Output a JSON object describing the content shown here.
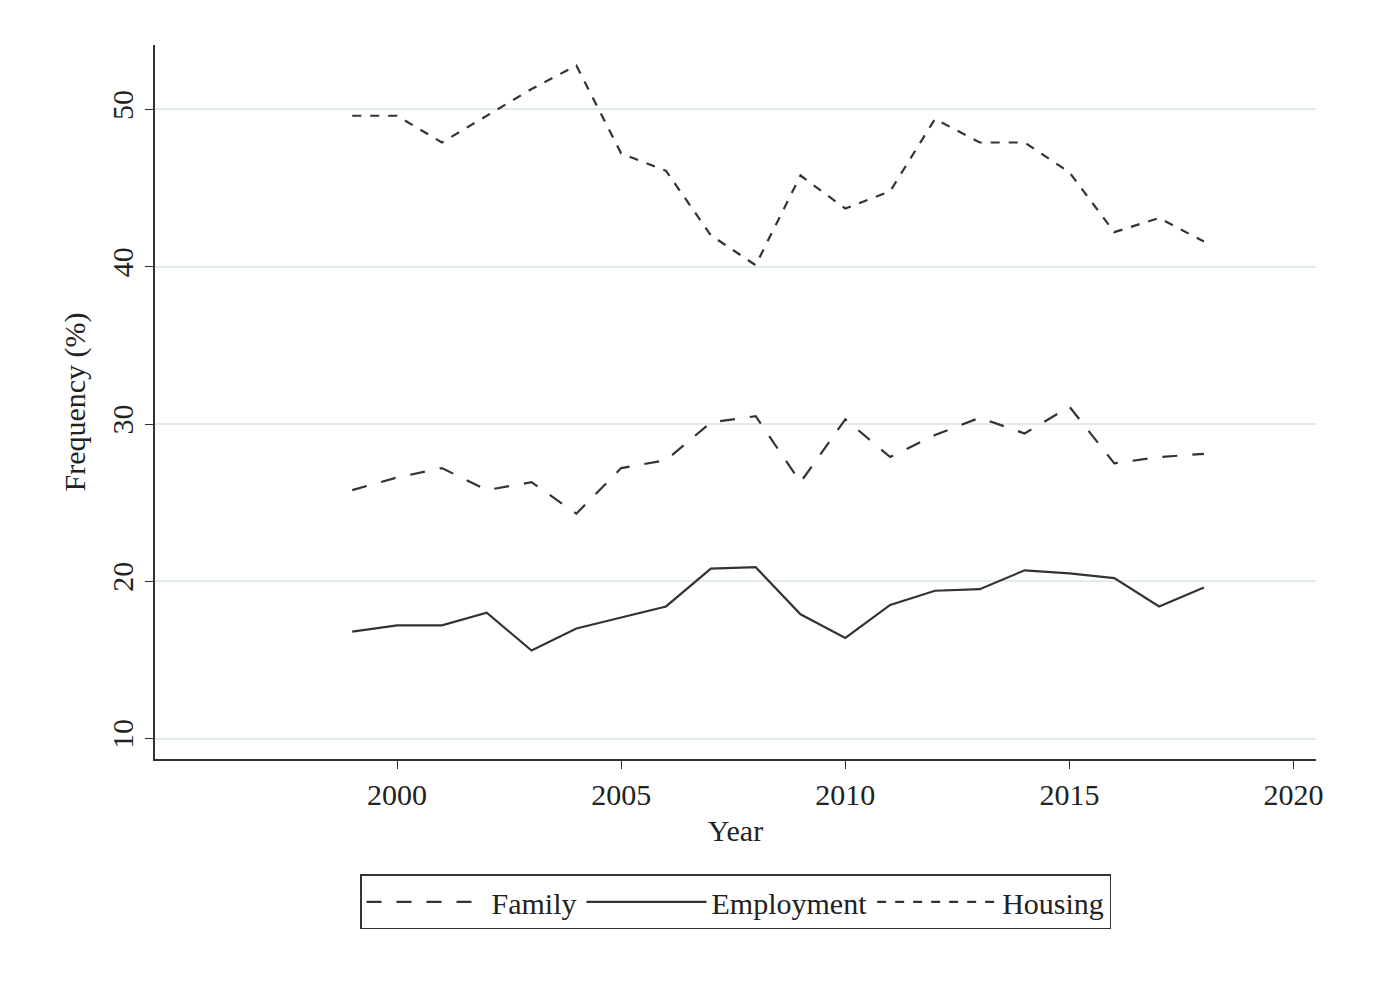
{
  "chart_data": {
    "type": "line",
    "x_label": "Year",
    "y_label": "Frequency (%)",
    "x": [
      1999,
      2000,
      2001,
      2002,
      2003,
      2004,
      2005,
      2006,
      2007,
      2008,
      2009,
      2010,
      2011,
      2012,
      2013,
      2014,
      2015,
      2016,
      2017,
      2018
    ],
    "series": [
      {
        "name": "Family",
        "color": "#333333",
        "line_style": "longdash",
        "values": [
          25.8,
          26.6,
          27.2,
          25.8,
          26.3,
          24.3,
          27.2,
          27.7,
          30.1,
          30.5,
          26.3,
          30.3,
          27.9,
          29.3,
          30.4,
          29.4,
          31.1,
          27.5,
          27.9,
          28.1
        ]
      },
      {
        "name": "Employment",
        "color": "#333333",
        "line_style": "solid",
        "values": [
          16.8,
          17.2,
          17.2,
          18.0,
          15.6,
          17.0,
          17.7,
          18.4,
          20.8,
          20.9,
          17.9,
          16.4,
          18.5,
          19.4,
          19.5,
          20.7,
          20.5,
          20.2,
          18.4,
          19.6
        ]
      },
      {
        "name": "Housing",
        "color": "#333333",
        "line_style": "dash",
        "values": [
          49.6,
          49.6,
          47.9,
          49.6,
          51.3,
          52.8,
          47.2,
          46.1,
          42.0,
          40.1,
          45.8,
          43.7,
          44.8,
          49.4,
          47.9,
          47.9,
          46.0,
          42.2,
          43.1,
          41.6
        ]
      }
    ],
    "xlim": [
      1994.6,
      2020.5
    ],
    "xticks": [
      2000,
      2005,
      2010,
      2015,
      2020
    ],
    "ylim": [
      8.7,
      54.1
    ],
    "yticks": [
      10,
      20,
      30,
      40,
      50
    ],
    "grid": true,
    "legend": "bottom"
  }
}
